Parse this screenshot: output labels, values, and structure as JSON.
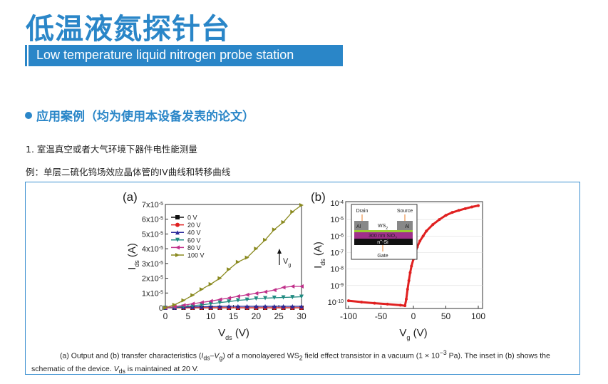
{
  "header": {
    "title": "低温液氮探针台",
    "subtitle": "Low temperature liquid nitrogen probe station"
  },
  "section": {
    "heading": "应用案例（均为使用本设备发表的论文）",
    "item1": "1. 室温真空或者大气环境下器件电性能测量",
    "example": "例：单层二硫化钨场效应晶体管的IV曲线和转移曲线"
  },
  "caption": {
    "p1": "(a) Output and (b) transfer characteristics (",
    "ids": "I",
    "ids_sub": "ds",
    "dash": "–",
    "vg": "V",
    "vg_sub": "g",
    "p2": ") of a monolayered WS",
    "ws_sub": "2",
    "p3": " field effect transistor in a vacuum (1 × 10",
    "exp": "−3",
    "p4": " Pa). The inset in (b) shows the schematic of the device. ",
    "vds": "V",
    "vds_sub": "ds",
    "p5": " is maintained at 20 V."
  },
  "colors": {
    "accent": "#2a86c8"
  },
  "chart_data": [
    {
      "type": "line",
      "panel": "(a)",
      "xlabel": "V",
      "xlabel_sub": "ds",
      "xlabel_unit": " (V)",
      "ylabel": "I",
      "ylabel_sub": "ds",
      "ylabel_unit": " (A)",
      "xlim": [
        0,
        30
      ],
      "ylim": [
        0,
        7e-05
      ],
      "xticks": [
        "0",
        "5",
        "10",
        "15",
        "20",
        "25",
        "30"
      ],
      "yticks": [
        "0",
        "1x10",
        "2x10",
        "3x10",
        "4x10",
        "5x10",
        "6x10",
        "7x10"
      ],
      "ytick_exp": "-5",
      "legend_placement": "top-left",
      "annotation": "V",
      "annotation_sub": "g",
      "x": [
        0,
        2,
        4,
        6,
        8,
        10,
        12,
        14,
        16,
        18,
        20,
        22,
        24,
        26,
        28,
        30
      ],
      "series": [
        {
          "name": "0 V",
          "color": "#111111",
          "marker": "square",
          "values": [
            0,
            0,
            0,
            0,
            0,
            0,
            0,
            0,
            0,
            0,
            0,
            0,
            0,
            0,
            0,
            0
          ]
        },
        {
          "name": "20 V",
          "color": "#e02020",
          "marker": "circle",
          "values": [
            0,
            0,
            0,
            0,
            0,
            0,
            0,
            0,
            0,
            0,
            0,
            0,
            0,
            0,
            0,
            0
          ]
        },
        {
          "name": "40 V",
          "color": "#2a2a9a",
          "marker": "triangle-up",
          "values": [
            0,
            2e-07,
            4e-07,
            6e-07,
            7e-07,
            8e-07,
            9e-07,
            1e-06,
            1e-06,
            1e-06,
            1e-06,
            1e-06,
            1e-06,
            1e-06,
            1e-06,
            1e-06
          ]
        },
        {
          "name": "60 V",
          "color": "#1f8a80",
          "marker": "triangle-down",
          "values": [
            0,
            3e-07,
            8e-07,
            1.4e-06,
            2e-06,
            2.7e-06,
            3.5e-06,
            4.2e-06,
            5e-06,
            5.5e-06,
            6.2e-06,
            6.5e-06,
            6.8e-06,
            7e-06,
            7.2e-06,
            7.5e-06
          ]
        },
        {
          "name": "80 V",
          "color": "#c0308a",
          "marker": "triangle-left",
          "values": [
            0,
            7e-07,
            1.7e-06,
            2.7e-06,
            3.6e-06,
            4.5e-06,
            5.6e-06,
            6.6e-06,
            7.8e-06,
            8.8e-06,
            9.8e-06,
            1.08e-05,
            1.2e-05,
            1.38e-05,
            1.45e-05,
            1.45e-05
          ]
        },
        {
          "name": "100 V",
          "color": "#8a8a20",
          "marker": "triangle-right",
          "values": [
            0,
            2e-06,
            5e-06,
            8.5e-06,
            1.25e-05,
            1.6e-05,
            2e-05,
            2.6e-05,
            3.1e-05,
            3.4e-05,
            4e-05,
            4.6e-05,
            5.3e-05,
            5.8e-05,
            6.5e-05,
            6.95e-05
          ]
        }
      ]
    },
    {
      "type": "scatter",
      "panel": "(b)",
      "xlabel": "V",
      "xlabel_sub": "g",
      "xlabel_unit": " (V)",
      "ylabel": "I",
      "ylabel_sub": "ds",
      "ylabel_unit": " (A)",
      "xlim": [
        -100,
        100
      ],
      "ylim": [
        1e-10,
        0.0001
      ],
      "yscale": "log",
      "grid": true,
      "xticks": [
        "-100",
        "-50",
        "0",
        "50",
        "100"
      ],
      "yticks_exp": [
        "-10",
        "-9",
        "-8",
        "-7",
        "-6",
        "-5",
        "-4"
      ],
      "ytick_base": "10",
      "series": [
        {
          "color": "#e02020",
          "x": [
            -100,
            -80,
            -60,
            -40,
            -20,
            -13,
            -11,
            -9,
            -7,
            -5,
            -3,
            0,
            3,
            6,
            10,
            15,
            20,
            30,
            40,
            50,
            60,
            70,
            80,
            90,
            100
          ],
          "values": [
            1.2e-10,
            1e-10,
            8.5e-11,
            7.5e-11,
            6.5e-11,
            6e-11,
            1.5e-10,
            6e-10,
            2e-09,
            6e-09,
            1.5e-08,
            4e-08,
            1e-07,
            2.2e-07,
            5e-07,
            1e-06,
            2e-06,
            5e-06,
            1e-05,
            1.8e-05,
            2.7e-05,
            3.6e-05,
            4.6e-05,
            5.8e-05,
            7e-05
          ]
        }
      ],
      "inset": {
        "drain": "Drain",
        "source": "Source",
        "al": "Al",
        "ws2": "WS",
        "ws2_sub": "2",
        "sio2": "300 nm SiO",
        "sio2_sub": "2",
        "si": "n",
        "si_sup": "+",
        "si_rest": "-Si",
        "gate": "Gate"
      }
    }
  ]
}
